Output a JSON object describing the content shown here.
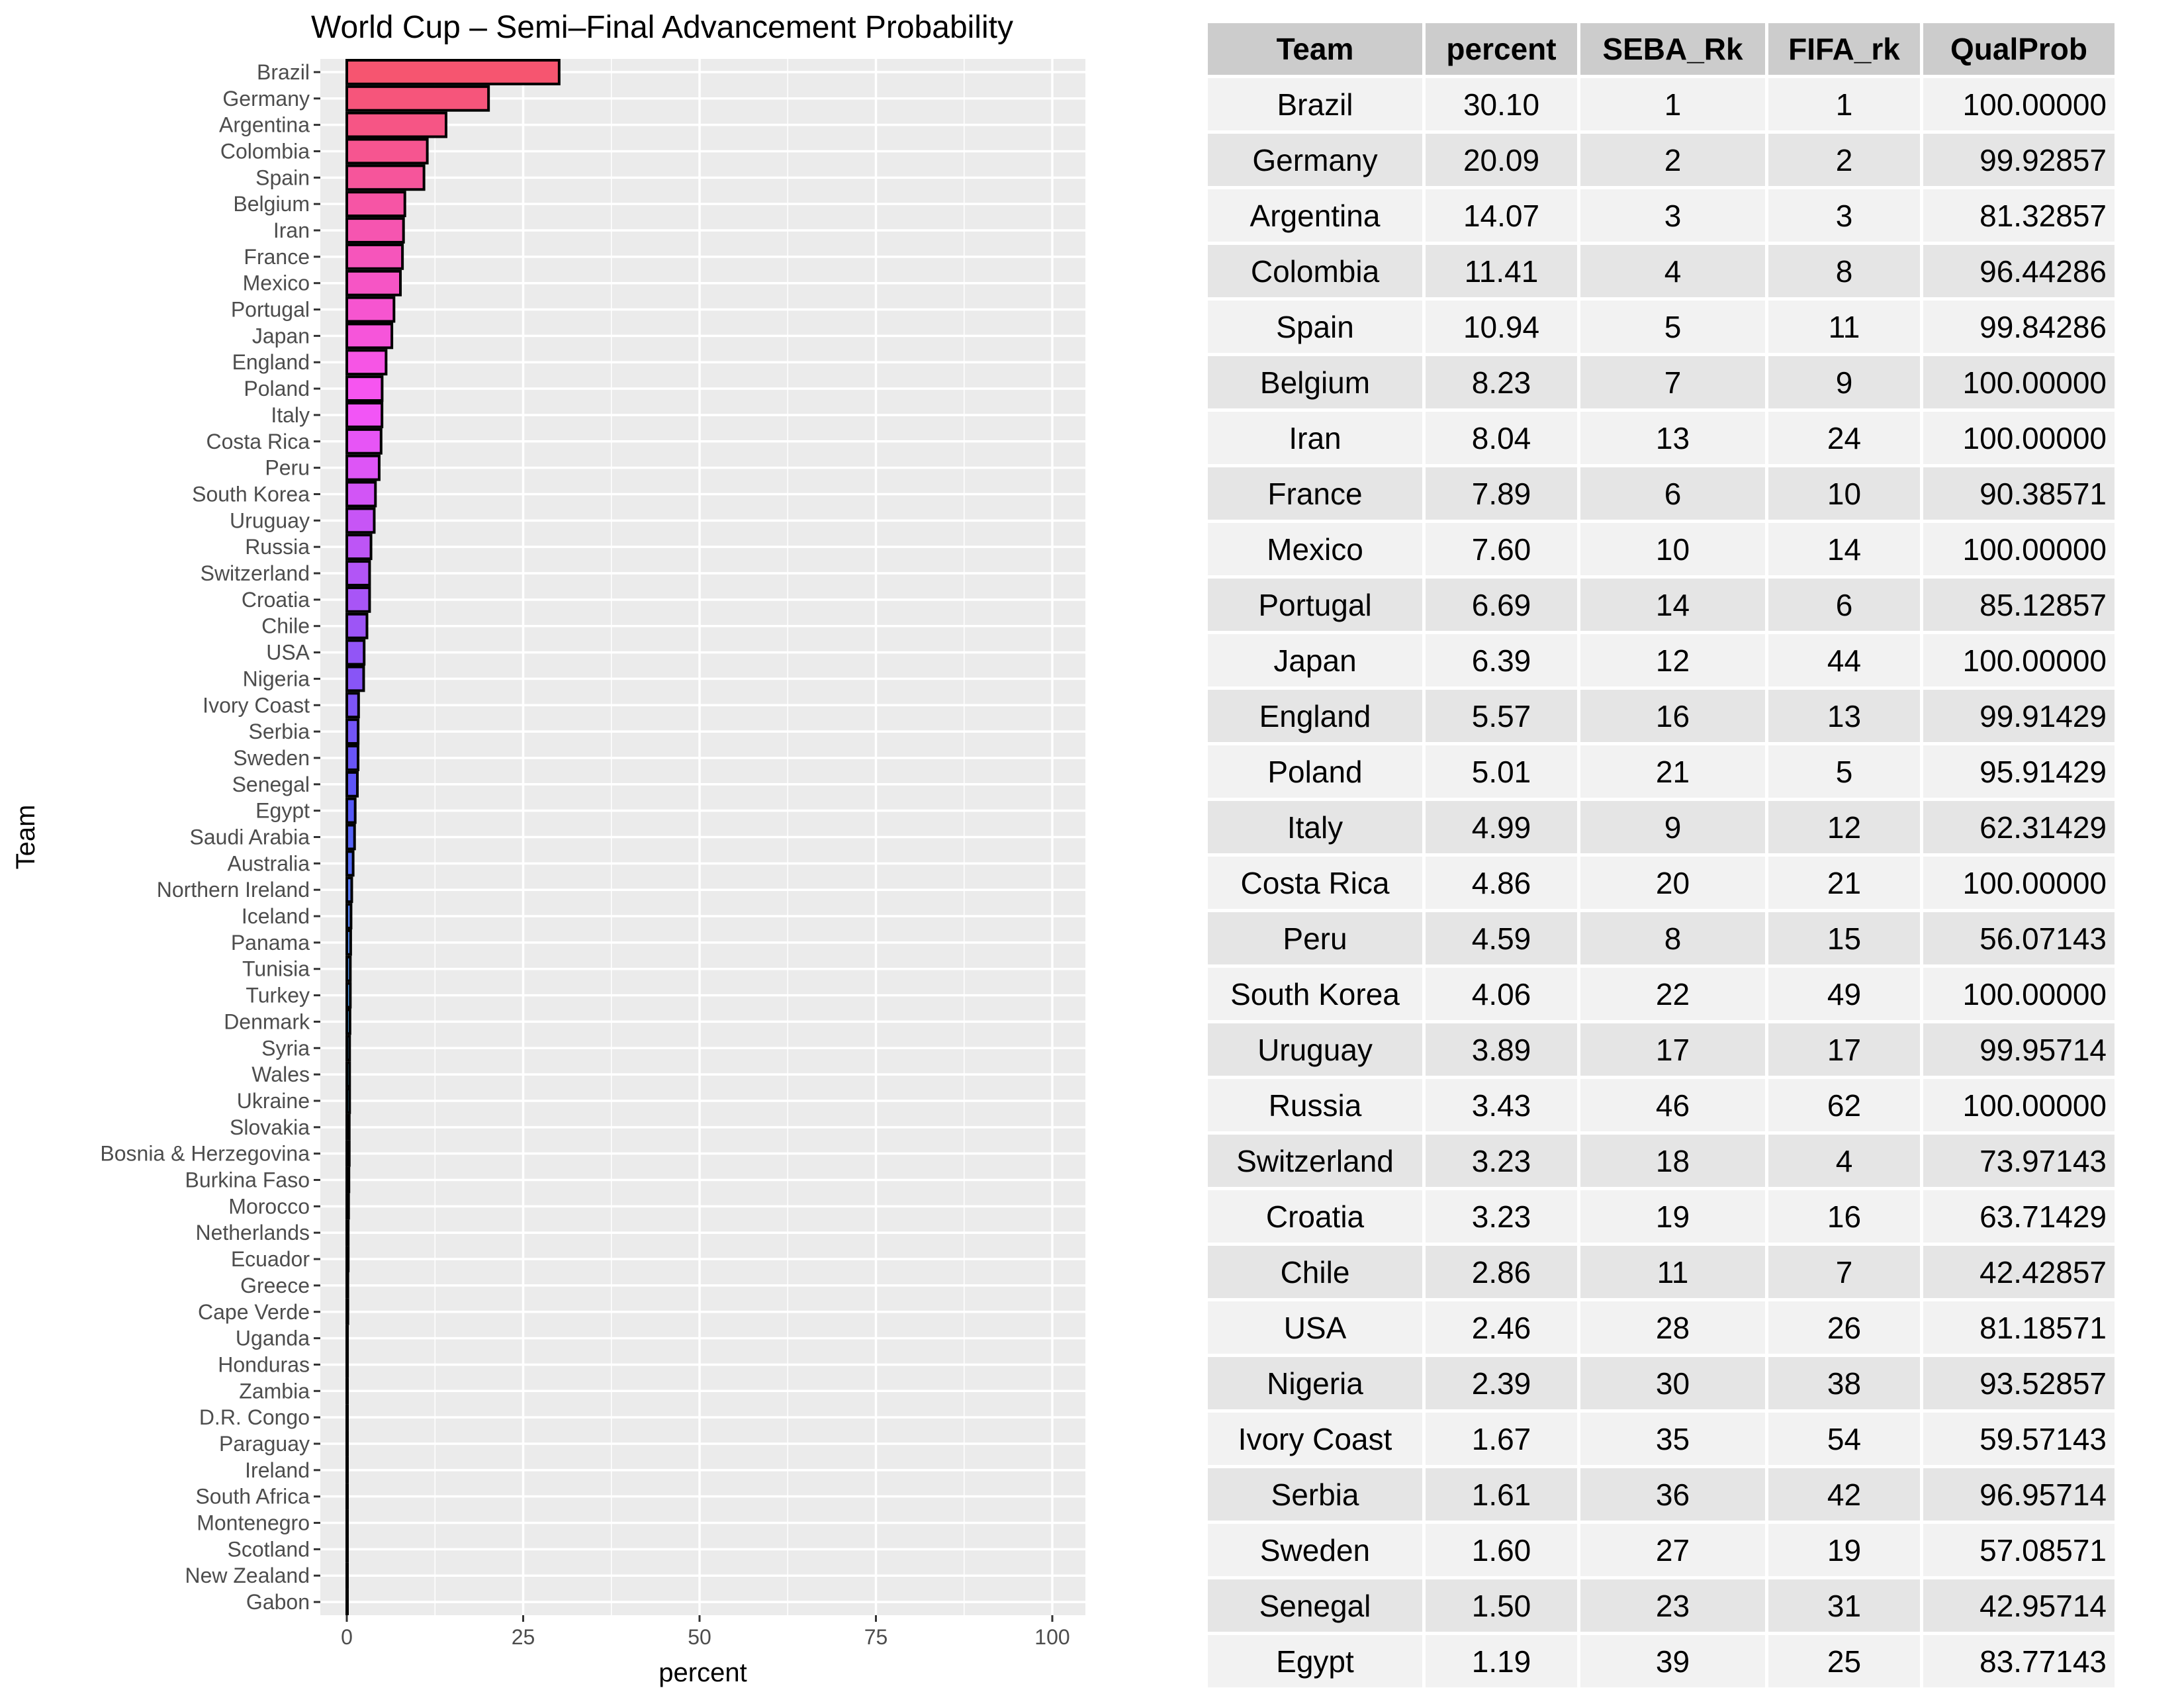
{
  "chart_data": {
    "type": "bar",
    "orientation": "horizontal",
    "title": "World Cup – Semi–Final Advancement Probability",
    "xlabel": "percent",
    "ylabel": "Team",
    "xlim": [
      0,
      100
    ],
    "xticks": [
      0,
      25,
      50,
      75,
      100
    ],
    "grid": true,
    "categories": [
      "Brazil",
      "Germany",
      "Argentina",
      "Colombia",
      "Spain",
      "Belgium",
      "Iran",
      "France",
      "Mexico",
      "Portugal",
      "Japan",
      "England",
      "Poland",
      "Italy",
      "Costa Rica",
      "Peru",
      "South Korea",
      "Uruguay",
      "Russia",
      "Switzerland",
      "Croatia",
      "Chile",
      "USA",
      "Nigeria",
      "Ivory Coast",
      "Serbia",
      "Sweden",
      "Senegal",
      "Egypt",
      "Saudi Arabia",
      "Australia",
      "Northern Ireland",
      "Iceland",
      "Panama",
      "Tunisia",
      "Turkey",
      "Denmark",
      "Syria",
      "Wales",
      "Ukraine",
      "Slovakia",
      "Bosnia & Herzegovina",
      "Burkina Faso",
      "Morocco",
      "Netherlands",
      "Ecuador",
      "Greece",
      "Cape Verde",
      "Uganda",
      "Honduras",
      "Zambia",
      "D.R. Congo",
      "Paraguay",
      "Ireland",
      "South Africa",
      "Montenegro",
      "Scotland",
      "New Zealand",
      "Gabon"
    ],
    "values": [
      30.1,
      20.09,
      14.07,
      11.41,
      10.94,
      8.23,
      8.04,
      7.89,
      7.6,
      6.69,
      6.39,
      5.57,
      5.01,
      4.99,
      4.86,
      4.59,
      4.06,
      3.89,
      3.43,
      3.23,
      3.23,
      2.86,
      2.46,
      2.39,
      1.67,
      1.61,
      1.6,
      1.5,
      1.19,
      1.1,
      0.9,
      0.7,
      0.6,
      0.55,
      0.5,
      0.5,
      0.45,
      0.4,
      0.4,
      0.4,
      0.35,
      0.35,
      0.3,
      0.25,
      0.2,
      0.2,
      0.15,
      0.15,
      0.1,
      0.1,
      0.08,
      0.06,
      0.05,
      0.04,
      0.03,
      0.02,
      0.02,
      0.01,
      0.01
    ]
  },
  "table": {
    "headers": [
      "Team",
      "percent",
      "SEBA_Rk",
      "FIFA_rk",
      "QualProb"
    ],
    "rows": [
      [
        "Brazil",
        "30.10",
        "1",
        "1",
        "100.00000"
      ],
      [
        "Germany",
        "20.09",
        "2",
        "2",
        "99.92857"
      ],
      [
        "Argentina",
        "14.07",
        "3",
        "3",
        "81.32857"
      ],
      [
        "Colombia",
        "11.41",
        "4",
        "8",
        "96.44286"
      ],
      [
        "Spain",
        "10.94",
        "5",
        "11",
        "99.84286"
      ],
      [
        "Belgium",
        "8.23",
        "7",
        "9",
        "100.00000"
      ],
      [
        "Iran",
        "8.04",
        "13",
        "24",
        "100.00000"
      ],
      [
        "France",
        "7.89",
        "6",
        "10",
        "90.38571"
      ],
      [
        "Mexico",
        "7.60",
        "10",
        "14",
        "100.00000"
      ],
      [
        "Portugal",
        "6.69",
        "14",
        "6",
        "85.12857"
      ],
      [
        "Japan",
        "6.39",
        "12",
        "44",
        "100.00000"
      ],
      [
        "England",
        "5.57",
        "16",
        "13",
        "99.91429"
      ],
      [
        "Poland",
        "5.01",
        "21",
        "5",
        "95.91429"
      ],
      [
        "Italy",
        "4.99",
        "9",
        "12",
        "62.31429"
      ],
      [
        "Costa Rica",
        "4.86",
        "20",
        "21",
        "100.00000"
      ],
      [
        "Peru",
        "4.59",
        "8",
        "15",
        "56.07143"
      ],
      [
        "South Korea",
        "4.06",
        "22",
        "49",
        "100.00000"
      ],
      [
        "Uruguay",
        "3.89",
        "17",
        "17",
        "99.95714"
      ],
      [
        "Russia",
        "3.43",
        "46",
        "62",
        "100.00000"
      ],
      [
        "Switzerland",
        "3.23",
        "18",
        "4",
        "73.97143"
      ],
      [
        "Croatia",
        "3.23",
        "19",
        "16",
        "63.71429"
      ],
      [
        "Chile",
        "2.86",
        "11",
        "7",
        "42.42857"
      ],
      [
        "USA",
        "2.46",
        "28",
        "26",
        "81.18571"
      ],
      [
        "Nigeria",
        "2.39",
        "30",
        "38",
        "93.52857"
      ],
      [
        "Ivory Coast",
        "1.67",
        "35",
        "54",
        "59.57143"
      ],
      [
        "Serbia",
        "1.61",
        "36",
        "42",
        "96.95714"
      ],
      [
        "Sweden",
        "1.60",
        "27",
        "19",
        "57.08571"
      ],
      [
        "Senegal",
        "1.50",
        "23",
        "31",
        "42.95714"
      ],
      [
        "Egypt",
        "1.19",
        "39",
        "25",
        "83.77143"
      ]
    ]
  }
}
